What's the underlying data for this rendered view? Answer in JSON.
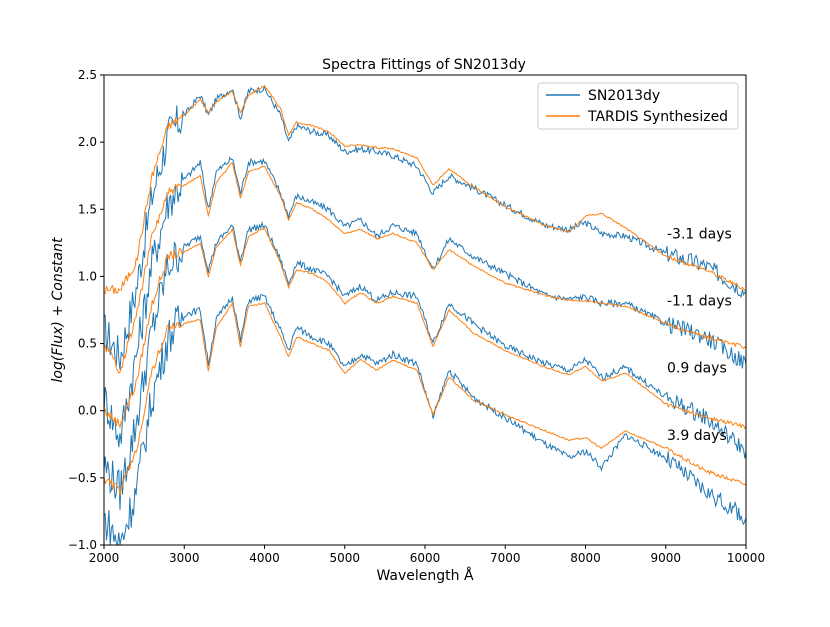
{
  "chart_data": {
    "type": "line",
    "title": "Spectra Fittings of SN2013dy",
    "xlabel": "Wavelength Å",
    "ylabel": "log(Flux) + Constant",
    "xlim": [
      2000,
      10000
    ],
    "ylim": [
      -1.0,
      2.5
    ],
    "xticks": [
      2000,
      3000,
      4000,
      5000,
      6000,
      7000,
      8000,
      9000,
      10000
    ],
    "yticks": [
      -1.0,
      -0.5,
      0.0,
      0.5,
      1.0,
      1.5,
      2.0,
      2.5
    ],
    "ytick_labels": [
      "−1.0",
      "−0.5",
      "0.0",
      "0.5",
      "1.0",
      "1.5",
      "2.0",
      "2.5"
    ],
    "grid": false,
    "legend_position": "top-right",
    "series": [
      {
        "name": "SN2013dy",
        "color": "#1f77b4"
      },
      {
        "name": "TARDIS Synthesized",
        "color": "#ff7f0e"
      }
    ],
    "spectra": [
      {
        "label": "-3.1 days",
        "label_y": 1.32,
        "observed": [
          [
            2000,
            0.6
          ],
          [
            2200,
            0.4
          ],
          [
            2400,
            0.9
          ],
          [
            2600,
            1.6
          ],
          [
            2800,
            2.05
          ],
          [
            3000,
            2.2
          ],
          [
            3200,
            2.35
          ],
          [
            3300,
            2.2
          ],
          [
            3400,
            2.32
          ],
          [
            3600,
            2.4
          ],
          [
            3700,
            2.18
          ],
          [
            3800,
            2.38
          ],
          [
            4000,
            2.4
          ],
          [
            4200,
            2.2
          ],
          [
            4300,
            2.0
          ],
          [
            4400,
            2.12
          ],
          [
            4600,
            2.08
          ],
          [
            4800,
            2.05
          ],
          [
            5000,
            1.93
          ],
          [
            5200,
            1.95
          ],
          [
            5400,
            1.93
          ],
          [
            5600,
            1.9
          ],
          [
            5900,
            1.82
          ],
          [
            6100,
            1.62
          ],
          [
            6300,
            1.75
          ],
          [
            6600,
            1.66
          ],
          [
            7000,
            1.53
          ],
          [
            7500,
            1.38
          ],
          [
            7800,
            1.35
          ],
          [
            8000,
            1.4
          ],
          [
            8200,
            1.32
          ],
          [
            8500,
            1.3
          ],
          [
            9000,
            1.17
          ],
          [
            9500,
            1.08
          ],
          [
            10000,
            0.88
          ]
        ],
        "synthetic": [
          [
            2000,
            0.9
          ],
          [
            2200,
            0.9
          ],
          [
            2400,
            1.1
          ],
          [
            2600,
            1.75
          ],
          [
            2800,
            2.12
          ],
          [
            3000,
            2.2
          ],
          [
            3200,
            2.32
          ],
          [
            3300,
            2.22
          ],
          [
            3400,
            2.3
          ],
          [
            3600,
            2.38
          ],
          [
            3700,
            2.22
          ],
          [
            3800,
            2.35
          ],
          [
            4000,
            2.42
          ],
          [
            4200,
            2.25
          ],
          [
            4300,
            2.05
          ],
          [
            4400,
            2.15
          ],
          [
            4600,
            2.12
          ],
          [
            4800,
            2.08
          ],
          [
            5000,
            1.97
          ],
          [
            5200,
            1.98
          ],
          [
            5400,
            1.96
          ],
          [
            5600,
            1.95
          ],
          [
            5900,
            1.88
          ],
          [
            6100,
            1.68
          ],
          [
            6300,
            1.8
          ],
          [
            6600,
            1.67
          ],
          [
            7000,
            1.52
          ],
          [
            7500,
            1.38
          ],
          [
            7800,
            1.33
          ],
          [
            8000,
            1.45
          ],
          [
            8200,
            1.47
          ],
          [
            8500,
            1.36
          ],
          [
            9000,
            1.15
          ],
          [
            9500,
            1.05
          ],
          [
            10000,
            0.9
          ]
        ]
      },
      {
        "label": "-1.1 days",
        "label_y": 0.82,
        "observed": [
          [
            2000,
            0.1
          ],
          [
            2200,
            -0.2
          ],
          [
            2400,
            0.4
          ],
          [
            2600,
            1.1
          ],
          [
            2800,
            1.55
          ],
          [
            3000,
            1.72
          ],
          [
            3200,
            1.85
          ],
          [
            3300,
            1.5
          ],
          [
            3400,
            1.78
          ],
          [
            3600,
            1.88
          ],
          [
            3700,
            1.62
          ],
          [
            3800,
            1.85
          ],
          [
            4000,
            1.86
          ],
          [
            4200,
            1.62
          ],
          [
            4300,
            1.45
          ],
          [
            4400,
            1.6
          ],
          [
            4600,
            1.55
          ],
          [
            4800,
            1.5
          ],
          [
            5000,
            1.37
          ],
          [
            5200,
            1.42
          ],
          [
            5400,
            1.3
          ],
          [
            5600,
            1.38
          ],
          [
            5900,
            1.32
          ],
          [
            6100,
            1.05
          ],
          [
            6300,
            1.28
          ],
          [
            6600,
            1.15
          ],
          [
            7000,
            1.02
          ],
          [
            7500,
            0.86
          ],
          [
            7800,
            0.83
          ],
          [
            8000,
            0.85
          ],
          [
            8200,
            0.8
          ],
          [
            8500,
            0.8
          ],
          [
            9000,
            0.65
          ],
          [
            9500,
            0.55
          ],
          [
            10000,
            0.35
          ]
        ],
        "synthetic": [
          [
            2000,
            0.5
          ],
          [
            2200,
            0.3
          ],
          [
            2400,
            0.7
          ],
          [
            2600,
            1.3
          ],
          [
            2800,
            1.62
          ],
          [
            3000,
            1.68
          ],
          [
            3200,
            1.75
          ],
          [
            3300,
            1.45
          ],
          [
            3400,
            1.7
          ],
          [
            3600,
            1.85
          ],
          [
            3700,
            1.58
          ],
          [
            3800,
            1.78
          ],
          [
            4000,
            1.82
          ],
          [
            4200,
            1.6
          ],
          [
            4300,
            1.42
          ],
          [
            4400,
            1.55
          ],
          [
            4600,
            1.5
          ],
          [
            4800,
            1.42
          ],
          [
            5000,
            1.32
          ],
          [
            5200,
            1.35
          ],
          [
            5400,
            1.28
          ],
          [
            5600,
            1.32
          ],
          [
            5900,
            1.25
          ],
          [
            6100,
            1.05
          ],
          [
            6300,
            1.2
          ],
          [
            6600,
            1.08
          ],
          [
            7000,
            0.95
          ],
          [
            7500,
            0.86
          ],
          [
            7800,
            0.82
          ],
          [
            8000,
            0.82
          ],
          [
            8200,
            0.8
          ],
          [
            8500,
            0.78
          ],
          [
            9000,
            0.65
          ],
          [
            9500,
            0.55
          ],
          [
            10000,
            0.47
          ]
        ]
      },
      {
        "label": "0.9 days",
        "label_y": 0.32,
        "observed": [
          [
            2000,
            -0.4
          ],
          [
            2200,
            -0.6
          ],
          [
            2400,
            -0.1
          ],
          [
            2600,
            0.6
          ],
          [
            2800,
            1.08
          ],
          [
            3000,
            1.22
          ],
          [
            3200,
            1.3
          ],
          [
            3300,
            1.05
          ],
          [
            3400,
            1.25
          ],
          [
            3600,
            1.38
          ],
          [
            3700,
            1.12
          ],
          [
            3800,
            1.35
          ],
          [
            4000,
            1.38
          ],
          [
            4200,
            1.12
          ],
          [
            4300,
            0.95
          ],
          [
            4400,
            1.1
          ],
          [
            4600,
            1.05
          ],
          [
            4800,
            1.0
          ],
          [
            5000,
            0.85
          ],
          [
            5200,
            0.93
          ],
          [
            5400,
            0.82
          ],
          [
            5600,
            0.88
          ],
          [
            5900,
            0.85
          ],
          [
            6100,
            0.5
          ],
          [
            6300,
            0.8
          ],
          [
            6600,
            0.65
          ],
          [
            7000,
            0.48
          ],
          [
            7500,
            0.35
          ],
          [
            7800,
            0.3
          ],
          [
            8000,
            0.38
          ],
          [
            8200,
            0.25
          ],
          [
            8500,
            0.32
          ],
          [
            9000,
            0.1
          ],
          [
            9500,
            -0.05
          ],
          [
            10000,
            -0.3
          ]
        ],
        "synthetic": [
          [
            2000,
            0.0
          ],
          [
            2200,
            -0.1
          ],
          [
            2400,
            0.2
          ],
          [
            2600,
            0.8
          ],
          [
            2800,
            1.15
          ],
          [
            3000,
            1.18
          ],
          [
            3200,
            1.25
          ],
          [
            3300,
            1.0
          ],
          [
            3400,
            1.22
          ],
          [
            3600,
            1.35
          ],
          [
            3700,
            1.08
          ],
          [
            3800,
            1.3
          ],
          [
            4000,
            1.36
          ],
          [
            4200,
            1.1
          ],
          [
            4300,
            0.92
          ],
          [
            4400,
            1.05
          ],
          [
            4600,
            1.02
          ],
          [
            4800,
            0.95
          ],
          [
            5000,
            0.8
          ],
          [
            5200,
            0.88
          ],
          [
            5400,
            0.8
          ],
          [
            5600,
            0.85
          ],
          [
            5900,
            0.8
          ],
          [
            6100,
            0.48
          ],
          [
            6300,
            0.75
          ],
          [
            6600,
            0.58
          ],
          [
            7000,
            0.45
          ],
          [
            7500,
            0.32
          ],
          [
            7800,
            0.27
          ],
          [
            8000,
            0.33
          ],
          [
            8200,
            0.22
          ],
          [
            8500,
            0.28
          ],
          [
            9000,
            0.05
          ],
          [
            9500,
            -0.05
          ],
          [
            10000,
            -0.12
          ]
        ]
      },
      {
        "label": "3.9 days",
        "label_y": -0.18,
        "observed": [
          [
            2000,
            -0.8
          ],
          [
            2200,
            -1.0
          ],
          [
            2400,
            -0.6
          ],
          [
            2600,
            0.1
          ],
          [
            2800,
            0.55
          ],
          [
            3000,
            0.72
          ],
          [
            3200,
            0.75
          ],
          [
            3300,
            0.35
          ],
          [
            3400,
            0.68
          ],
          [
            3600,
            0.85
          ],
          [
            3700,
            0.52
          ],
          [
            3800,
            0.82
          ],
          [
            4000,
            0.85
          ],
          [
            4200,
            0.6
          ],
          [
            4300,
            0.45
          ],
          [
            4400,
            0.62
          ],
          [
            4600,
            0.55
          ],
          [
            4800,
            0.5
          ],
          [
            5000,
            0.32
          ],
          [
            5200,
            0.42
          ],
          [
            5400,
            0.35
          ],
          [
            5600,
            0.42
          ],
          [
            5900,
            0.35
          ],
          [
            6100,
            -0.05
          ],
          [
            6300,
            0.3
          ],
          [
            6600,
            0.1
          ],
          [
            7000,
            -0.05
          ],
          [
            7500,
            -0.25
          ],
          [
            7800,
            -0.35
          ],
          [
            8000,
            -0.3
          ],
          [
            8200,
            -0.42
          ],
          [
            8500,
            -0.18
          ],
          [
            9000,
            -0.35
          ],
          [
            9500,
            -0.6
          ],
          [
            10000,
            -0.8
          ]
        ],
        "synthetic": [
          [
            2000,
            -0.5
          ],
          [
            2200,
            -0.6
          ],
          [
            2400,
            -0.3
          ],
          [
            2600,
            0.3
          ],
          [
            2800,
            0.62
          ],
          [
            3000,
            0.65
          ],
          [
            3200,
            0.68
          ],
          [
            3300,
            0.3
          ],
          [
            3400,
            0.62
          ],
          [
            3600,
            0.8
          ],
          [
            3700,
            0.48
          ],
          [
            3800,
            0.78
          ],
          [
            4000,
            0.8
          ],
          [
            4200,
            0.55
          ],
          [
            4300,
            0.4
          ],
          [
            4400,
            0.55
          ],
          [
            4600,
            0.5
          ],
          [
            4800,
            0.45
          ],
          [
            5000,
            0.28
          ],
          [
            5200,
            0.38
          ],
          [
            5400,
            0.3
          ],
          [
            5600,
            0.38
          ],
          [
            5900,
            0.3
          ],
          [
            6100,
            -0.03
          ],
          [
            6300,
            0.25
          ],
          [
            6600,
            0.08
          ],
          [
            7000,
            -0.03
          ],
          [
            7500,
            -0.15
          ],
          [
            7800,
            -0.22
          ],
          [
            8000,
            -0.2
          ],
          [
            8200,
            -0.28
          ],
          [
            8500,
            -0.15
          ],
          [
            9000,
            -0.28
          ],
          [
            9500,
            -0.45
          ],
          [
            10000,
            -0.55
          ]
        ]
      }
    ]
  }
}
